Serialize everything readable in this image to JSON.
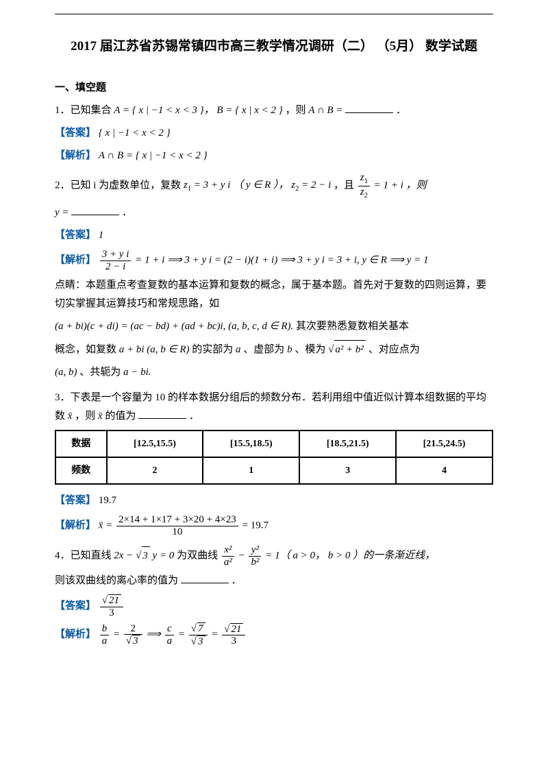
{
  "title": "2017 届江苏省苏锡常镇四市高三教学情况调研（二） （5月） 数学试题",
  "section1": "一、填空题",
  "q1": {
    "stem_a": "1．已知集合 ",
    "stem_b": "A = { x | −1 < x < 3 }，   B = { x | x < 2 }",
    "stem_c": "，则 ",
    "stem_d": "A ∩ B = ",
    "stem_e": "．",
    "ans_label": "【答案】",
    "ans": "{ x | −1 < x < 2 }",
    "exp_label": "【解析】",
    "exp": "A ∩ B = { x | −1 < x < 2 }"
  },
  "q2": {
    "stem_a": "2．已知 i 为虚数单位，复数 ",
    "stem_b": "z",
    "stem_b2": " = 3 + y i （ y ∈ R ），",
    "stem_c": "z",
    "stem_c2": " = 2 − i",
    "stem_d": "，且 ",
    "frac_num": "z",
    "frac_den": "z",
    "stem_e": " = 1 + i ，则",
    "stem_f": "y = ",
    "stem_g": "．",
    "ans_label": "【答案】",
    "ans": "1",
    "exp_label": "【解析】",
    "exp_frac_num": "3 + y i",
    "exp_frac_den": "2 − i",
    "exp_rest": " = 1 + i ⟹ 3 + y i = (2 − i)(1 + i) ⟹ 3 + y i = 3 + i, y ∈ R ⟹ y = 1",
    "note1": "点睛：本题重点考查复数的基本运算和复数的概念，属于基本题。首先对于复数的四则运算，要切实掌握其运算技巧和常规思路，如",
    "note2_a": "(a + bi)(c + di) = (ac − bd) + (ad + bc)i, (a, b, c, d ∈ R).",
    "note2_b": "   其次要熟悉复数相关基本",
    "note3_a": "概念，如复数 ",
    "note3_b": "a + bi (a, b ∈ R)",
    "note3_c": " 的实部为 ",
    "note3_d": "a",
    "note3_e": " 、虚部为 ",
    "note3_f": "b",
    "note3_g": " 、模为",
    "note3_sqrt": "a² + b²",
    "note3_h": "  、对应点为",
    "note4_a": "(a, b)",
    "note4_b": "、共轭为 ",
    "note4_c": "a − bi."
  },
  "q3": {
    "stem_a": "3．下表是一个容量为 10 的样本数据分组后的频数分布．若利用组中值近似计算本组数据的平均数 ",
    "stem_b": "x̄",
    "stem_c": " ，则 ",
    "stem_d": "x̄",
    "stem_e": " 的值为",
    "stem_f": "．",
    "table": {
      "h1": "数据",
      "h2": "频数",
      "cols": [
        "[12.5,15.5)",
        "[15.5,18.5)",
        "[18.5,21.5)",
        "[21.5,24.5)"
      ],
      "row2": [
        "2",
        "1",
        "3",
        "4"
      ]
    },
    "ans_label": "【答案】",
    "ans": "19.7",
    "exp_label": "【解析】",
    "exp_lhs": "x̄ = ",
    "exp_num": "2×14 + 1×17 + 3×20 + 4×23",
    "exp_den": "10",
    "exp_end": " = 19.7"
  },
  "q4": {
    "stem_a": "4．已知直线 ",
    "stem_b": "2x − ",
    "stem_sqrt1": "3",
    "stem_c": " y = 0",
    "stem_d": " 为双曲线 ",
    "frac1_num": "x²",
    "frac1_den": "a²",
    "stem_e": " − ",
    "frac2_num": "y²",
    "frac2_den": "b²",
    "stem_f": " = 1（ a > 0，     b > 0 ）的一条渐近线，",
    "stem_g": "则该双曲线的离心率的值为",
    "stem_h": "．",
    "ans_label": "【答案】",
    "ans_num": "21",
    "ans_den": "3",
    "exp_label": "【解析】",
    "exp_f1n": "b",
    "exp_f1d": "a",
    "exp_eq1": " = ",
    "exp_f2n": "2",
    "exp_f2d": "3",
    "exp_arrow": " ⟹ ",
    "exp_f3n": "c",
    "exp_f3d": "a",
    "exp_eq2": " = ",
    "exp_f4n": "7",
    "exp_f4d": "3",
    "exp_eq3": " = ",
    "exp_f5n": "21",
    "exp_f5d": "3"
  }
}
